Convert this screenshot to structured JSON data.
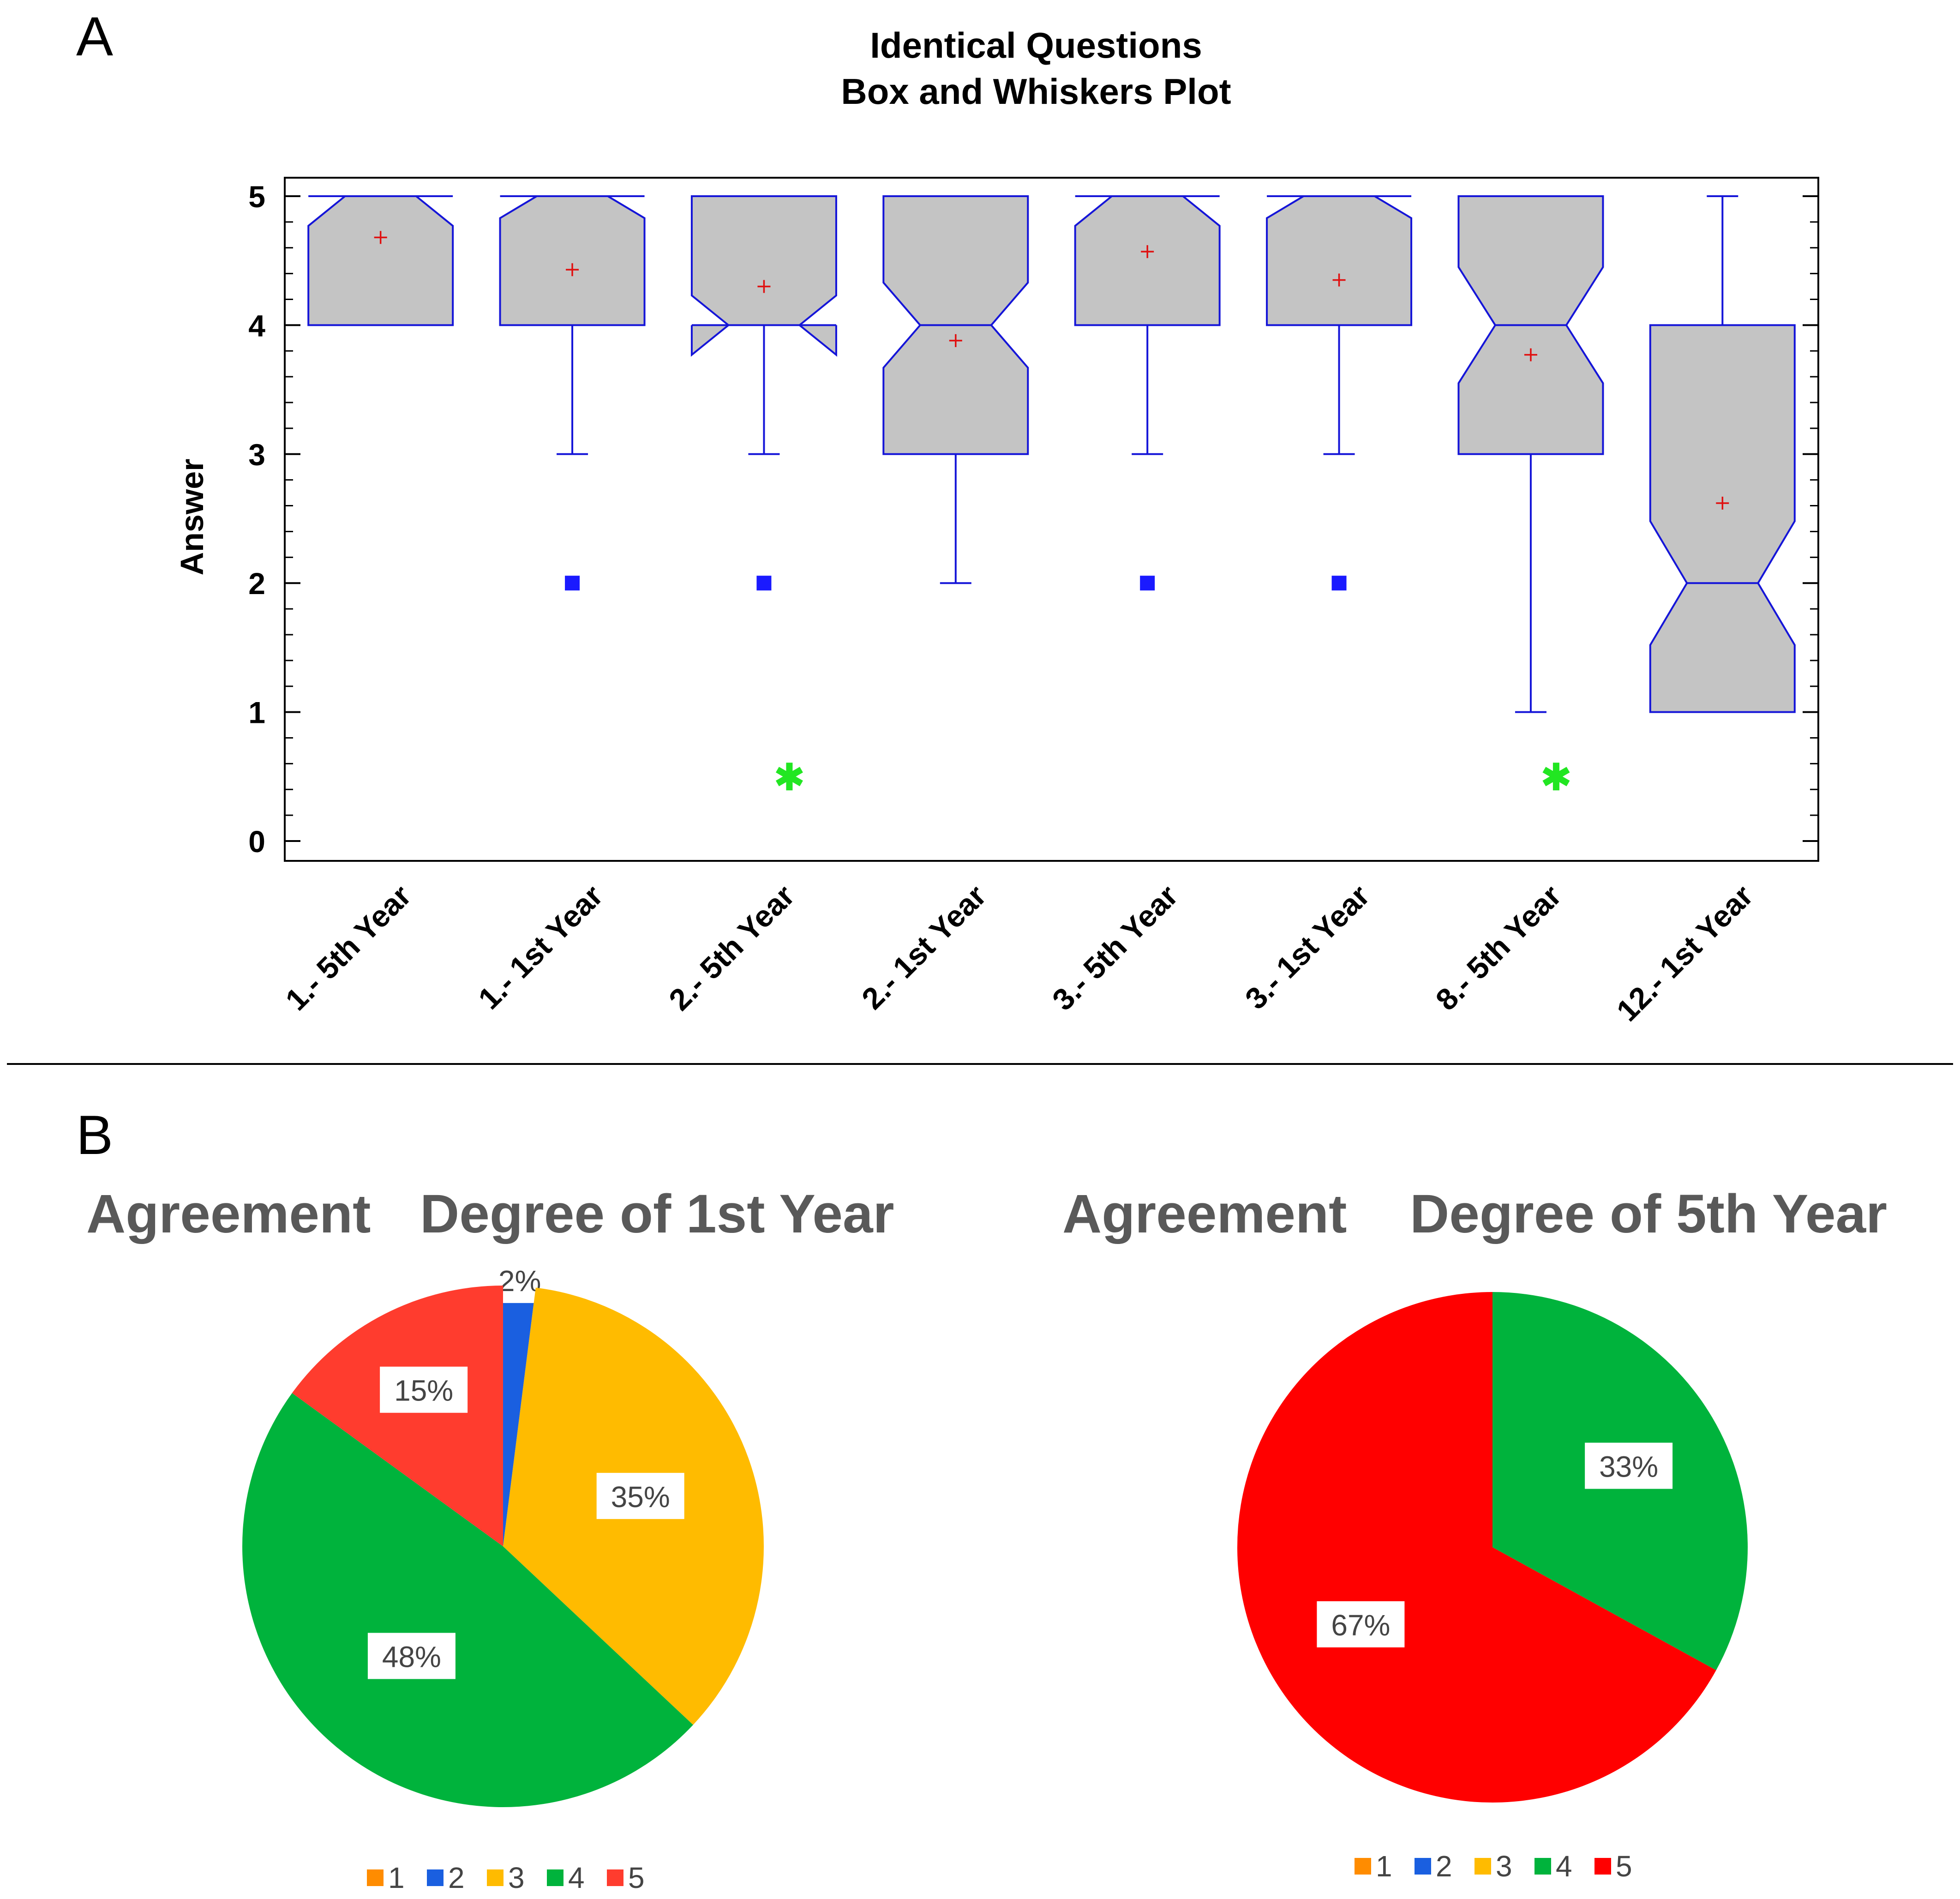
{
  "panel_a_label": "A",
  "panel_b_label": "B",
  "chart_data": [
    {
      "type": "box",
      "title": "Identical Questions",
      "subtitle": "Box and Whiskers Plot",
      "xlabel": "",
      "ylabel": "Answer",
      "ylim": [
        0,
        5
      ],
      "yticks": [
        0,
        1,
        2,
        3,
        4,
        5
      ],
      "categories": [
        "1.- 5th Year",
        "1.- 1st Year",
        "2.- 5th Year",
        "2.- 1st Year",
        "3.- 5th Year",
        "3.- 1st Year",
        "8.- 5th Year",
        "12.- 1st Year"
      ],
      "boxes": [
        {
          "q1": 4,
          "median": 5,
          "q3": 5,
          "notch_low": 4.77,
          "notch_high": 5,
          "whisker_low": 4,
          "whisker_high": 5,
          "mean": 4.68,
          "outliers": [],
          "significant": false
        },
        {
          "q1": 4,
          "median": 5,
          "q3": 5,
          "notch_low": 4.83,
          "notch_high": 5,
          "whisker_low": 3,
          "whisker_high": 5,
          "mean": 4.43,
          "outliers": [
            2
          ],
          "significant": false
        },
        {
          "q1": 4,
          "median": 4,
          "q3": 5,
          "notch_low": 3.77,
          "notch_high": 4.23,
          "whisker_low": 3,
          "whisker_high": 5,
          "mean": 4.3,
          "outliers": [
            2
          ],
          "significant": true
        },
        {
          "q1": 3,
          "median": 4,
          "q3": 5,
          "notch_low": 3.67,
          "notch_high": 4.33,
          "whisker_low": 2,
          "whisker_high": 5,
          "mean": 3.88,
          "outliers": [],
          "significant": false
        },
        {
          "q1": 4,
          "median": 5,
          "q3": 5,
          "notch_low": 4.77,
          "notch_high": 5,
          "whisker_low": 3,
          "whisker_high": 5,
          "mean": 4.57,
          "outliers": [
            2
          ],
          "significant": false
        },
        {
          "q1": 4,
          "median": 5,
          "q3": 5,
          "notch_low": 4.83,
          "notch_high": 5,
          "whisker_low": 3,
          "whisker_high": 5,
          "mean": 4.35,
          "outliers": [
            2
          ],
          "significant": false
        },
        {
          "q1": 3,
          "median": 4,
          "q3": 5,
          "notch_low": 3.55,
          "notch_high": 4.45,
          "whisker_low": 1,
          "whisker_high": 5,
          "mean": 3.77,
          "outliers": [],
          "significant": true
        },
        {
          "q1": 1,
          "median": 2,
          "q3": 4,
          "notch_low": 1.52,
          "notch_high": 2.48,
          "whisker_low": 1,
          "whisker_high": 5,
          "mean": 2.62,
          "outliers": [],
          "significant": false
        }
      ],
      "colors": {
        "box_fill": "#c4c4c4",
        "box_stroke": "#1515d8",
        "mean": "#e01010",
        "outlier": "#1a1aff",
        "significance": "#22e622"
      }
    },
    {
      "type": "pie",
      "title_left": "Agreement",
      "title_right": "Degree of 1st Year",
      "slices": [
        {
          "label": "1",
          "value": 0,
          "pct_label": "",
          "color": "#ff8c00"
        },
        {
          "label": "2",
          "value": 2,
          "pct_label": "2%",
          "color": "#1a5fe0"
        },
        {
          "label": "3",
          "value": 35,
          "pct_label": "35%",
          "color": "#ffbb00"
        },
        {
          "label": "4",
          "value": 48,
          "pct_label": "48%",
          "color": "#00b33c"
        },
        {
          "label": "5",
          "value": 15,
          "pct_label": "15%",
          "color": "#ff3c2e"
        }
      ]
    },
    {
      "type": "pie",
      "title_left": "Agreement",
      "title_right": "Degree of 5th Year",
      "slices": [
        {
          "label": "1",
          "value": 0,
          "pct_label": "",
          "color": "#ff8c00"
        },
        {
          "label": "2",
          "value": 0,
          "pct_label": "",
          "color": "#1a5fe0"
        },
        {
          "label": "3",
          "value": 0,
          "pct_label": "",
          "color": "#ffbb00"
        },
        {
          "label": "4",
          "value": 33,
          "pct_label": "33%",
          "color": "#00b33c"
        },
        {
          "label": "5",
          "value": 67,
          "pct_label": "67%",
          "color": "#ff0000"
        }
      ]
    }
  ]
}
